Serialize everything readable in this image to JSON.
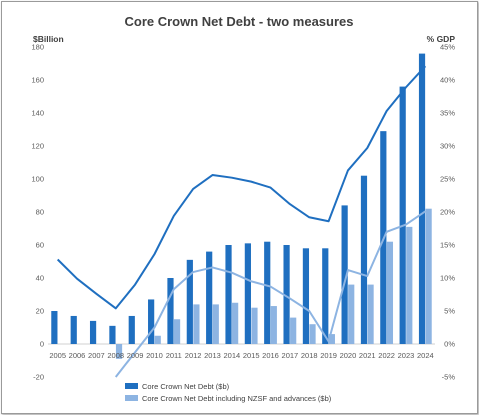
{
  "chart_data": {
    "type": "bar",
    "title": "Core Crown Net Debt - two measures",
    "ylabel_left": "$Billion",
    "ylabel_right": "% GDP",
    "categories": [
      "2005",
      "2006",
      "2007",
      "2008",
      "2009",
      "2010",
      "2011",
      "2012",
      "2013",
      "2014",
      "2015",
      "2016",
      "2017",
      "2018",
      "2019",
      "2020",
      "2021",
      "2022",
      "2023",
      "2024"
    ],
    "ylim_left": [
      -20,
      180
    ],
    "yticks_left": [
      "-20",
      "0",
      "20",
      "40",
      "60",
      "80",
      "100",
      "120",
      "140",
      "160",
      "180"
    ],
    "ylim_right": [
      -5,
      45
    ],
    "yticks_right": [
      "-5%",
      "0%",
      "5%",
      "10%",
      "15%",
      "20%",
      "25%",
      "30%",
      "35%",
      "40%",
      "45%"
    ],
    "grid": false,
    "legend_position": "bottom-left",
    "series": [
      {
        "name": "Core Crown Net Debt ($b)",
        "kind": "bar",
        "axis": "left",
        "color": "#1f6fc0",
        "values": [
          20,
          17,
          14,
          11,
          17,
          27,
          40,
          51,
          56,
          60,
          61,
          62,
          60,
          58,
          58,
          84,
          102,
          129,
          156,
          176
        ]
      },
      {
        "name": "Core Crown Net Debt including NZSF and advances ($b)",
        "kind": "bar",
        "axis": "left",
        "color": "#8db4e2",
        "values": [
          null,
          null,
          null,
          -9,
          null,
          5,
          15,
          24,
          24,
          25,
          22,
          23,
          16,
          12,
          6,
          36,
          36,
          62,
          71,
          82
        ]
      },
      {
        "kind": "line",
        "axis": "right",
        "color": "#1f6fc0",
        "values": [
          12.8,
          9.9,
          7.6,
          5.4,
          9.0,
          13.6,
          19.4,
          23.5,
          25.6,
          25.2,
          24.6,
          23.7,
          21.2,
          19.2,
          18.6,
          26.3,
          29.7,
          35.3,
          38.9,
          42.1
        ]
      },
      {
        "kind": "line",
        "axis": "right",
        "color": "#8db4e2",
        "values": [
          null,
          null,
          null,
          -5.0,
          null,
          2.5,
          8.3,
          10.9,
          11.6,
          10.8,
          9.5,
          8.7,
          6.9,
          5.0,
          0.4,
          11.2,
          10.3,
          17.0,
          18.1,
          20.1
        ]
      }
    ]
  }
}
